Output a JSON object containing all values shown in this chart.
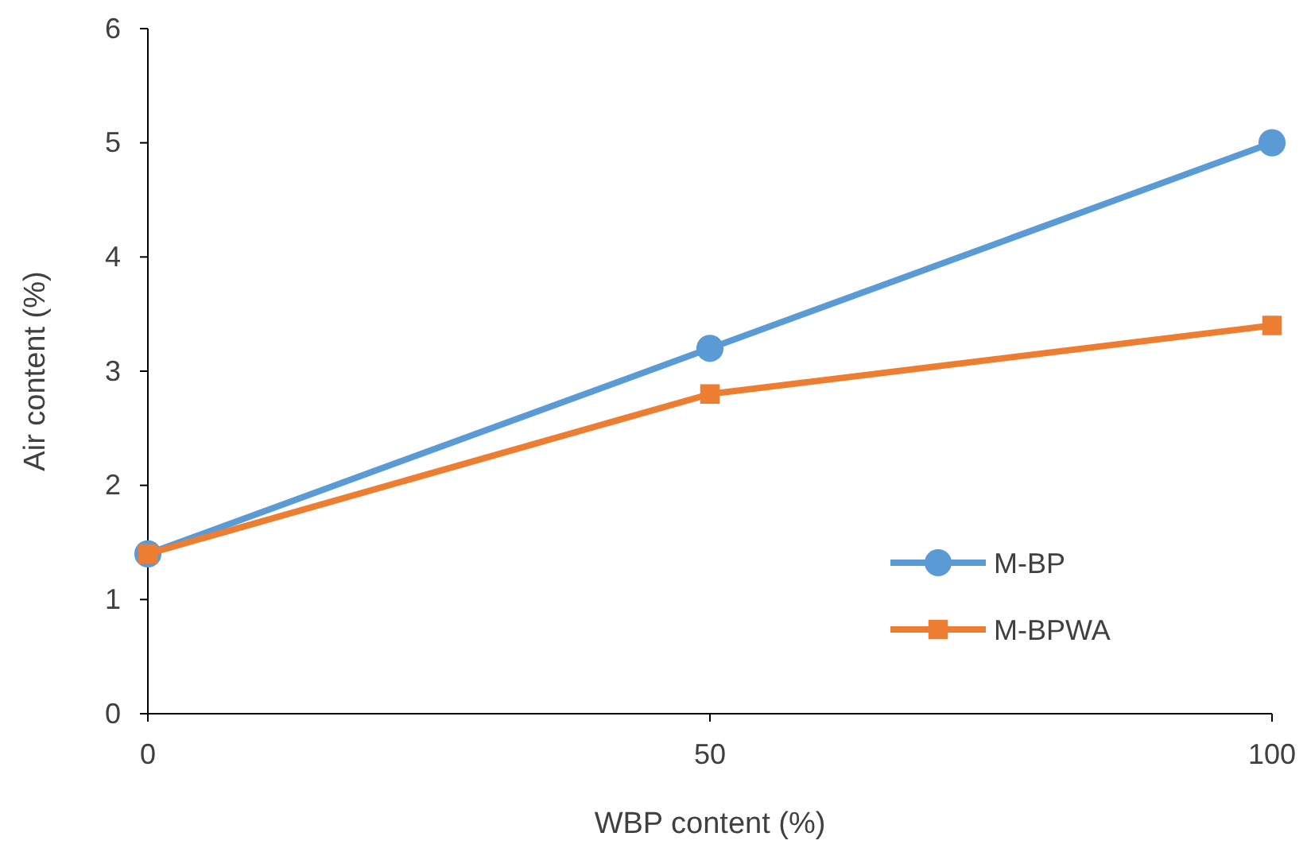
{
  "chart_data": {
    "type": "line",
    "xlabel": "WBP content (%)",
    "ylabel": "Air content (%)",
    "x": [
      0,
      50,
      100
    ],
    "series": [
      {
        "name": "M-BP",
        "color": "#5b9bd5",
        "marker": "circle",
        "values": [
          1.4,
          3.2,
          5.0
        ]
      },
      {
        "name": "M-BPWA",
        "color": "#ed7d31",
        "marker": "square",
        "values": [
          1.4,
          2.8,
          3.4
        ]
      }
    ],
    "xlim": [
      0,
      100
    ],
    "xticks": [
      0,
      50,
      100
    ],
    "ylim": [
      0,
      6
    ],
    "yticks": [
      0,
      1,
      2,
      3,
      4,
      5,
      6
    ],
    "grid": false,
    "legend": "bottom right",
    "line_style": "solid"
  }
}
